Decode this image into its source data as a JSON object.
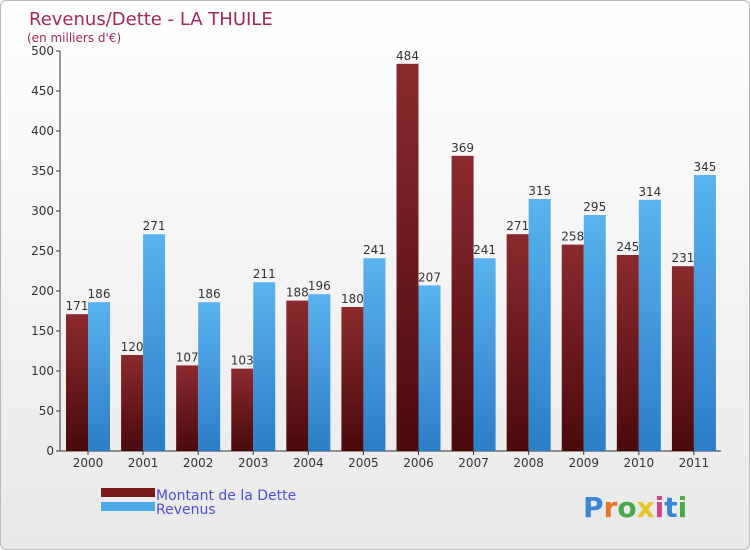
{
  "chart_data": {
    "type": "bar",
    "title": "Revenus/Dette - LA THUILE",
    "subtitle": "(en milliers d'€)",
    "categories": [
      "2000",
      "2001",
      "2002",
      "2003",
      "2004",
      "2005",
      "2006",
      "2007",
      "2008",
      "2009",
      "2010",
      "2011"
    ],
    "series": [
      {
        "name": "Montant de la Dette",
        "color": "#7a1a1e",
        "values": [
          171,
          120,
          107,
          103,
          188,
          180,
          484,
          369,
          271,
          258,
          245,
          231
        ]
      },
      {
        "name": "Revenus",
        "color": "#4fa8e8",
        "values": [
          186,
          271,
          186,
          211,
          196,
          241,
          207,
          241,
          315,
          295,
          314,
          345
        ]
      }
    ],
    "ylim": [
      0,
      500
    ],
    "yticks": [
      0,
      50,
      100,
      150,
      200,
      250,
      300,
      350,
      400,
      450,
      500
    ],
    "grid": false,
    "legend": "bottom-left"
  },
  "logo": {
    "letters": [
      "P",
      "r",
      "o",
      "x",
      "i",
      "t",
      "i"
    ],
    "colors": [
      "#3b86d6",
      "#e8732a",
      "#4aa84a",
      "#e8c62a",
      "#d23f8a",
      "#3b86d6",
      "#4aa84a"
    ]
  }
}
